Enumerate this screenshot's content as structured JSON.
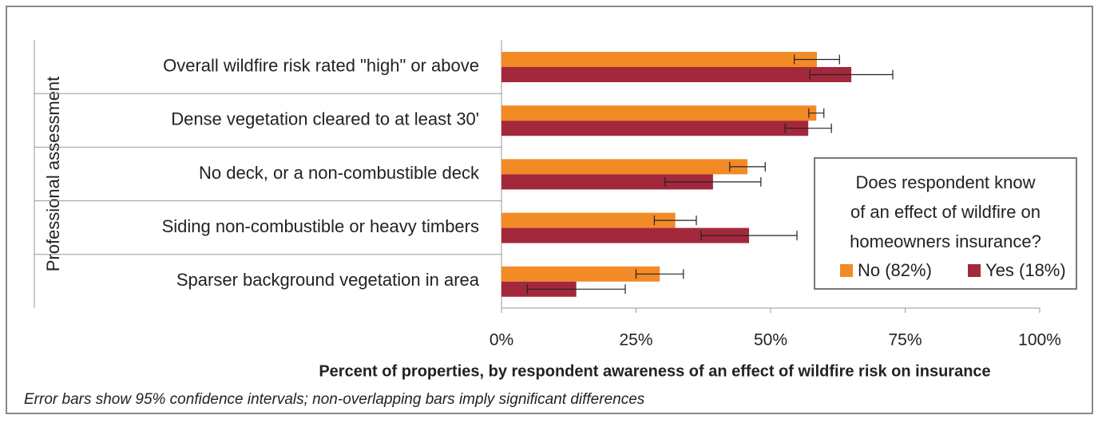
{
  "chart_data": {
    "type": "hbar",
    "y_label": "Professional assessment",
    "x_label": "Percent of properties, by respondent awareness of an effect of wildfire risk on insurance",
    "note": "Error bars show 95% confidence intervals; non-overlapping bars imply significant differences",
    "legend_title": [
      "Does respondent know",
      "of an effect of wildfire on",
      "homeowners insurance?"
    ],
    "legend_position": "right",
    "categories": [
      "Overall wildfire risk rated \"high\" or above",
      "Dense vegetation cleared to at least 30'",
      "No deck, or a non-combustible deck",
      "Siding non-combustible or heavy timbers",
      "Sparser background vegetation in area"
    ],
    "series": [
      {
        "name": "No (82%)",
        "color": "#f28a26",
        "values": [
          58.6,
          58.5,
          45.7,
          32.3,
          29.4
        ],
        "errors": [
          4.2,
          1.4,
          3.3,
          3.9,
          4.4
        ]
      },
      {
        "name": "Yes (18%)",
        "color": "#a3283b",
        "values": [
          65.0,
          57.0,
          39.3,
          46.0,
          13.9
        ],
        "errors": [
          7.7,
          4.3,
          8.9,
          8.9,
          9.1
        ]
      }
    ],
    "xlim": [
      0,
      100
    ],
    "xticks": [
      {
        "value": 0,
        "label": "0%"
      },
      {
        "value": 25,
        "label": "25%"
      },
      {
        "value": 50,
        "label": "50%"
      },
      {
        "value": 75,
        "label": "75%"
      },
      {
        "value": 100,
        "label": "100%"
      }
    ]
  }
}
